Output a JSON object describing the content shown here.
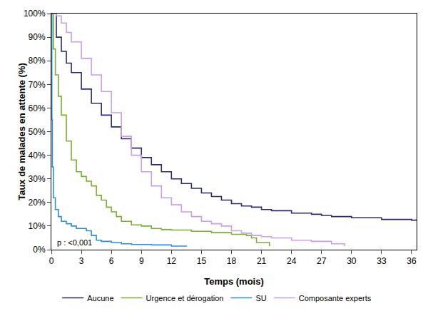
{
  "chart_data": {
    "type": "line",
    "line_style": "step",
    "x_label": "Temps (mois)",
    "y_label": "Taux de malades en attente (%)",
    "xlim": [
      0,
      36.5
    ],
    "xticks": [
      0,
      3,
      6,
      9,
      12,
      15,
      18,
      21,
      24,
      27,
      30,
      33,
      36
    ],
    "ylim": [
      0,
      100
    ],
    "yticks": [
      {
        "value": 0,
        "label": "0%"
      },
      {
        "value": 10,
        "label": "10%"
      },
      {
        "value": 20,
        "label": "20%"
      },
      {
        "value": 30,
        "label": "30%"
      },
      {
        "value": 40,
        "label": "40%"
      },
      {
        "value": 50,
        "label": "50%"
      },
      {
        "value": 60,
        "label": "60%"
      },
      {
        "value": 70,
        "label": "70%"
      },
      {
        "value": 80,
        "label": "80%"
      },
      {
        "value": 90,
        "label": "90%"
      },
      {
        "value": 100,
        "label": "100%"
      }
    ],
    "grid": false,
    "legend": "bottom",
    "annotations": [
      {
        "text": "p : <0,001",
        "x": 0.4,
        "y": 3
      }
    ],
    "series": [
      {
        "name": "Aucune",
        "color": "#2b2a6e",
        "x": [
          0,
          0.5,
          1,
          1.5,
          2,
          3,
          4,
          5,
          6,
          7,
          8,
          9,
          10,
          11,
          12,
          13,
          14,
          15,
          16,
          17,
          18,
          19,
          20,
          21,
          22,
          24,
          26,
          27,
          28,
          30,
          33,
          36,
          36.5
        ],
        "values": [
          100,
          90,
          84,
          79,
          75,
          68,
          62,
          57,
          52,
          47,
          43,
          39,
          36,
          33,
          30,
          28,
          26,
          24,
          22.5,
          21,
          19.5,
          18.5,
          18,
          17,
          16.5,
          15.5,
          15,
          14.5,
          14,
          13.5,
          12.8,
          12.5,
          12.3
        ]
      },
      {
        "name": "Urgence et dérogation",
        "color": "#7ab030",
        "x": [
          0,
          0.2,
          0.4,
          0.7,
          1,
          1.5,
          2,
          2.5,
          3,
          3.5,
          4,
          4.5,
          5,
          5.5,
          6,
          6.5,
          7,
          8,
          9,
          10,
          11,
          12,
          14,
          16,
          18,
          19.5,
          20,
          20.5,
          21.3,
          21.8
        ],
        "values": [
          100,
          85,
          74,
          65,
          57,
          46,
          38,
          33,
          31,
          29,
          27,
          23,
          21,
          18,
          16,
          14,
          12,
          10.5,
          10,
          9,
          8.5,
          8.3,
          7.8,
          7.2,
          6.5,
          6,
          5,
          3,
          3,
          1.5
        ]
      },
      {
        "name": "SU",
        "color": "#2e8fd8",
        "x": [
          0,
          0.05,
          0.1,
          0.2,
          0.4,
          0.7,
          1,
          1.5,
          2,
          2.5,
          3.5,
          4,
          4.5,
          5,
          6,
          7,
          8,
          10,
          12,
          13.5
        ],
        "values": [
          100,
          55,
          35,
          22,
          17,
          14,
          12,
          11,
          10,
          9,
          8,
          6,
          4,
          3.5,
          3,
          2.5,
          2.2,
          2,
          1.5,
          1.3
        ]
      },
      {
        "name": "Composante experts",
        "color": "#c9a0e8",
        "x": [
          0.2,
          0.5,
          1,
          1.5,
          2,
          3,
          4,
          5,
          6,
          7,
          8,
          9,
          10,
          11,
          12,
          13,
          14,
          15,
          16,
          17,
          18,
          19,
          20,
          21,
          22,
          24,
          26,
          28,
          29.3
        ],
        "values": [
          100,
          99,
          96,
          92,
          88,
          81,
          74,
          67,
          58,
          48,
          40,
          33,
          27,
          22,
          19,
          16,
          14,
          12,
          11,
          10,
          8,
          7,
          6,
          5.5,
          5,
          4,
          3.5,
          2.5,
          1.5
        ]
      }
    ]
  }
}
